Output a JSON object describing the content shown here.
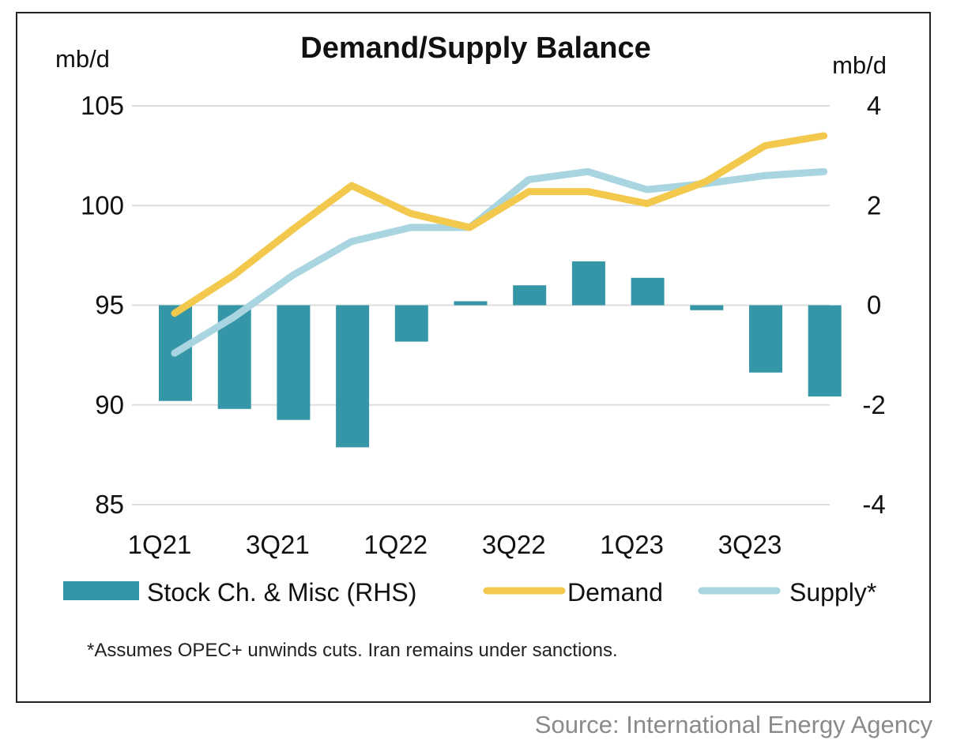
{
  "footnote": "*Assumes OPEC+ unwinds cuts. Iran remains under sanctions.",
  "source": "Source: International Energy Agency",
  "colors": {
    "stock": "#3596a8",
    "demand": "#f2c94c",
    "supply": "#a8d5df",
    "grid": "#dddddd"
  },
  "chart_data": {
    "type": "bar+line",
    "title": "Demand/Supply Balance",
    "ylabel_left": "mb/d",
    "ylabel_right": "mb/d",
    "ylim_left": [
      85,
      105
    ],
    "ylim_right": [
      -4,
      4
    ],
    "yticks_left": [
      "105",
      "100",
      "95",
      "90",
      "85"
    ],
    "yticks_right": [
      "4",
      "2",
      "0",
      "-2",
      "-4"
    ],
    "categories": [
      "1Q21",
      "2Q21",
      "3Q21",
      "4Q21",
      "1Q22",
      "2Q22",
      "3Q22",
      "4Q22",
      "1Q23",
      "2Q23",
      "3Q23",
      "4Q23"
    ],
    "xtick_labels": [
      "1Q21",
      "",
      "3Q21",
      "",
      "1Q22",
      "",
      "3Q22",
      "",
      "1Q23",
      "",
      "3Q23",
      ""
    ],
    "series": [
      {
        "name": "Stock Ch. & Misc (RHS)",
        "type": "bar",
        "axis": "right",
        "values": [
          -1.92,
          -2.08,
          -2.3,
          -2.85,
          -0.73,
          0.08,
          0.4,
          0.88,
          0.55,
          -0.1,
          -1.35,
          -1.83
        ]
      },
      {
        "name": "Demand",
        "type": "line",
        "axis": "left",
        "values": [
          94.6,
          96.5,
          98.8,
          101.0,
          99.6,
          98.9,
          100.7,
          100.7,
          100.1,
          101.2,
          103.0,
          103.5
        ]
      },
      {
        "name": "Supply*",
        "type": "line",
        "axis": "left",
        "values": [
          92.6,
          94.4,
          96.5,
          98.2,
          98.9,
          98.9,
          101.3,
          101.7,
          100.8,
          101.1,
          101.5,
          101.7
        ]
      }
    ],
    "legend": [
      "Stock Ch. & Misc (RHS)",
      "Demand",
      "Supply*"
    ],
    "legend_position": "bottom"
  }
}
